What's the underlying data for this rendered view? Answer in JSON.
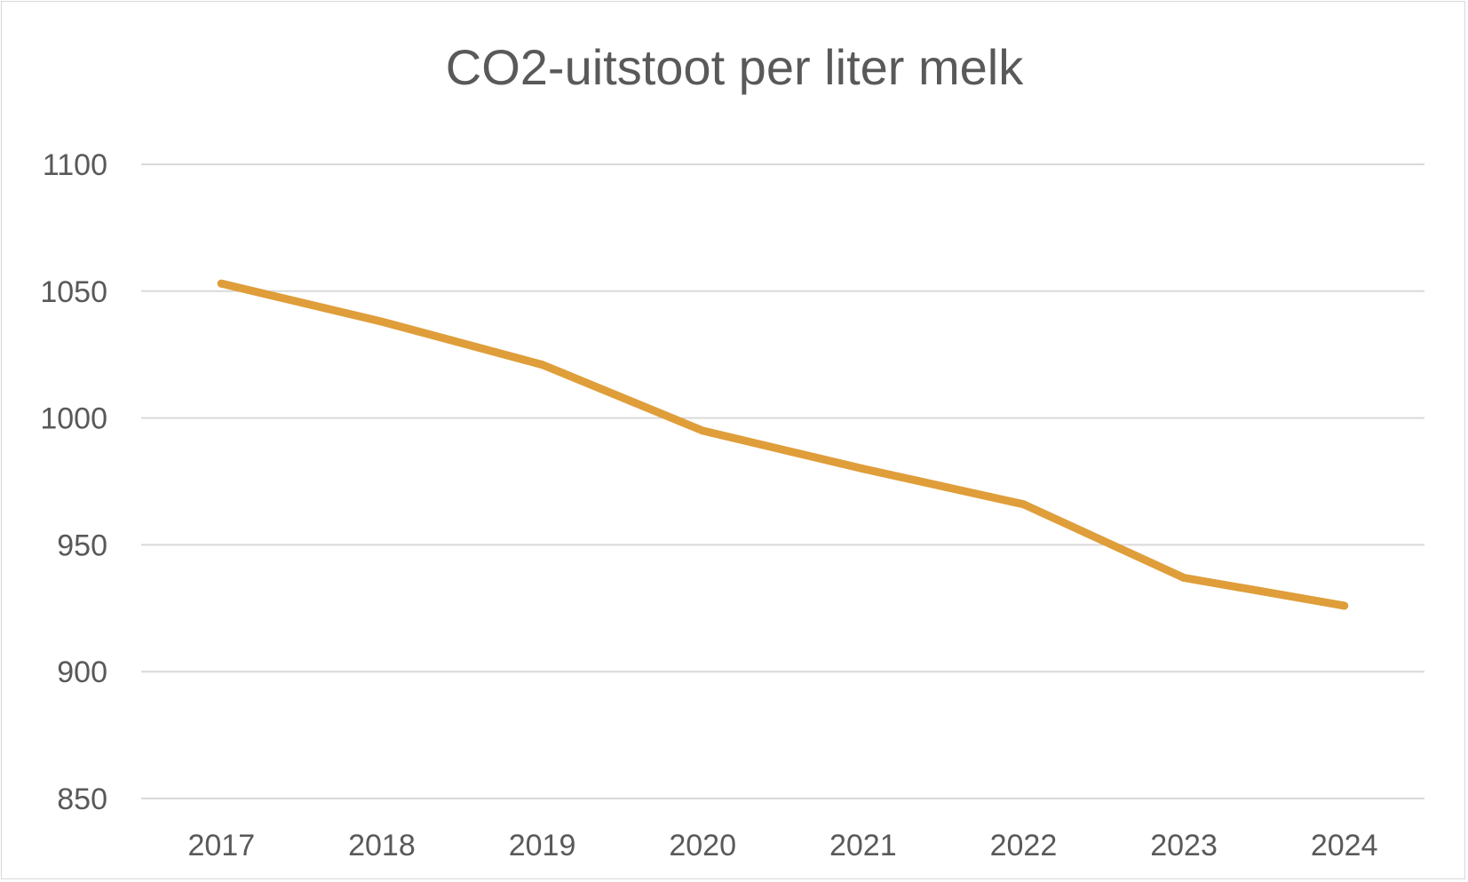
{
  "chart_data": {
    "type": "line",
    "title": "CO2-uitstoot per liter melk",
    "xlabel": "",
    "ylabel": "",
    "categories": [
      "2017",
      "2018",
      "2019",
      "2020",
      "2021",
      "2022",
      "2023",
      "2024"
    ],
    "series": [
      {
        "values": [
          1053,
          1038,
          1021,
          995,
          980,
          966,
          937,
          926
        ],
        "color": "#DF9E3A"
      }
    ],
    "ylim": [
      850,
      1100
    ],
    "yticks": [
      "850",
      "900",
      "950",
      "1000",
      "1050",
      "1100"
    ],
    "grid": true,
    "legend": "none"
  }
}
